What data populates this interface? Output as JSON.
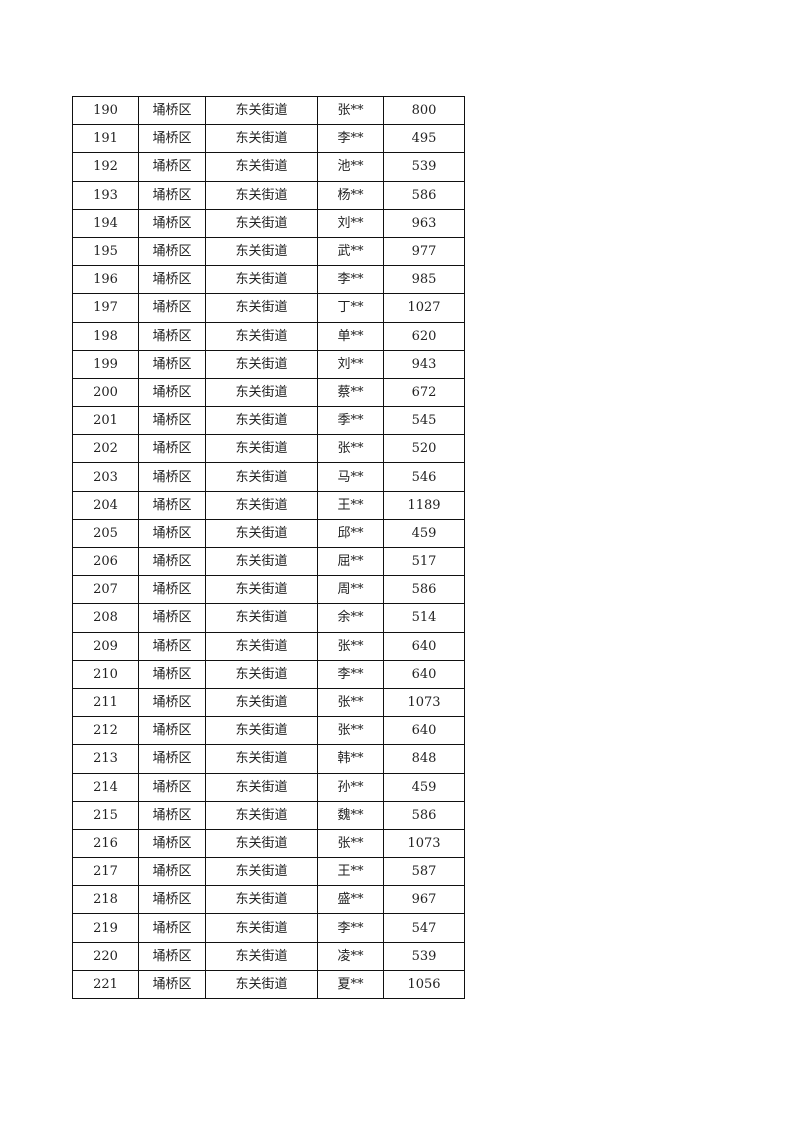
{
  "table": {
    "rows": [
      [
        "190",
        "埇桥区",
        "东关街道",
        "张**",
        "800"
      ],
      [
        "191",
        "埇桥区",
        "东关街道",
        "李**",
        "495"
      ],
      [
        "192",
        "埇桥区",
        "东关街道",
        "池**",
        "539"
      ],
      [
        "193",
        "埇桥区",
        "东关街道",
        "杨**",
        "586"
      ],
      [
        "194",
        "埇桥区",
        "东关街道",
        "刘**",
        "963"
      ],
      [
        "195",
        "埇桥区",
        "东关街道",
        "武**",
        "977"
      ],
      [
        "196",
        "埇桥区",
        "东关街道",
        "李**",
        "985"
      ],
      [
        "197",
        "埇桥区",
        "东关街道",
        "丁**",
        "1027"
      ],
      [
        "198",
        "埇桥区",
        "东关街道",
        "单**",
        "620"
      ],
      [
        "199",
        "埇桥区",
        "东关街道",
        "刘**",
        "943"
      ],
      [
        "200",
        "埇桥区",
        "东关街道",
        "蔡**",
        "672"
      ],
      [
        "201",
        "埇桥区",
        "东关街道",
        "季**",
        "545"
      ],
      [
        "202",
        "埇桥区",
        "东关街道",
        "张**",
        "520"
      ],
      [
        "203",
        "埇桥区",
        "东关街道",
        "马**",
        "546"
      ],
      [
        "204",
        "埇桥区",
        "东关街道",
        "王**",
        "1189"
      ],
      [
        "205",
        "埇桥区",
        "东关街道",
        "邱**",
        "459"
      ],
      [
        "206",
        "埇桥区",
        "东关街道",
        "屈**",
        "517"
      ],
      [
        "207",
        "埇桥区",
        "东关街道",
        "周**",
        "586"
      ],
      [
        "208",
        "埇桥区",
        "东关街道",
        "余**",
        "514"
      ],
      [
        "209",
        "埇桥区",
        "东关街道",
        "张**",
        "640"
      ],
      [
        "210",
        "埇桥区",
        "东关街道",
        "李**",
        "640"
      ],
      [
        "211",
        "埇桥区",
        "东关街道",
        "张**",
        "1073"
      ],
      [
        "212",
        "埇桥区",
        "东关街道",
        "张**",
        "640"
      ],
      [
        "213",
        "埇桥区",
        "东关街道",
        "韩**",
        "848"
      ],
      [
        "214",
        "埇桥区",
        "东关街道",
        "孙**",
        "459"
      ],
      [
        "215",
        "埇桥区",
        "东关街道",
        "魏**",
        "586"
      ],
      [
        "216",
        "埇桥区",
        "东关街道",
        "张**",
        "1073"
      ],
      [
        "217",
        "埇桥区",
        "东关街道",
        "王**",
        "587"
      ],
      [
        "218",
        "埇桥区",
        "东关街道",
        "盛**",
        "967"
      ],
      [
        "219",
        "埇桥区",
        "东关街道",
        "李**",
        "547"
      ],
      [
        "220",
        "埇桥区",
        "东关街道",
        "凌**",
        "539"
      ],
      [
        "221",
        "埇桥区",
        "东关街道",
        "夏**",
        "1056"
      ]
    ]
  }
}
